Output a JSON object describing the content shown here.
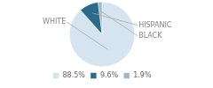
{
  "chart_data": {
    "type": "pie",
    "categories": [
      "WHITE",
      "HISPANIC",
      "BLACK"
    ],
    "values": [
      88.5,
      9.6,
      1.9
    ],
    "value_labels": [
      "88.5%",
      "9.6%",
      "1.9%"
    ],
    "colors": [
      "#d5e4ee",
      "#2d6a8a",
      "#a2b8c8"
    ],
    "legend": "bottom"
  }
}
